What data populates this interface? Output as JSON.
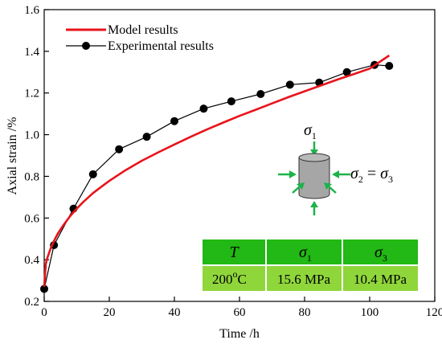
{
  "chart_data": {
    "type": "line",
    "xlabel": "Time /h",
    "ylabel": "Axial strain /%",
    "xlim": [
      0,
      120
    ],
    "ylim": [
      0.2,
      1.6
    ],
    "xticks": [
      "0",
      "20",
      "40",
      "60",
      "80",
      "100",
      "120"
    ],
    "yticks": [
      "0.2",
      "0.4",
      "0.6",
      "0.8",
      "1.0",
      "1.2",
      "1.4",
      "1.6"
    ],
    "legend_position": "top-left",
    "grid": false,
    "series": [
      {
        "name": "Model results",
        "style": "line",
        "color": "#e8141b",
        "x": [
          0,
          0.5,
          1,
          2,
          3,
          4,
          5,
          6,
          8,
          10,
          12,
          15,
          18,
          20,
          25,
          30,
          35,
          40,
          45,
          50,
          55,
          60,
          65,
          70,
          75,
          80,
          85,
          90,
          95,
          100,
          106
        ],
        "y": [
          0.27,
          0.38,
          0.41,
          0.455,
          0.49,
          0.52,
          0.545,
          0.568,
          0.61,
          0.645,
          0.677,
          0.72,
          0.755,
          0.778,
          0.83,
          0.875,
          0.915,
          0.953,
          0.99,
          1.025,
          1.058,
          1.09,
          1.12,
          1.15,
          1.18,
          1.208,
          1.236,
          1.264,
          1.29,
          1.317,
          1.38
        ]
      },
      {
        "name": "Experimental results",
        "style": "line-markers",
        "color": "#000000",
        "x": [
          0,
          3,
          9,
          15,
          23,
          31.5,
          40,
          49,
          57.5,
          66.5,
          75.5,
          84.5,
          93,
          101.5,
          106
        ],
        "y": [
          0.26,
          0.47,
          0.645,
          0.81,
          0.93,
          0.99,
          1.065,
          1.125,
          1.16,
          1.195,
          1.24,
          1.25,
          1.3,
          1.335,
          1.33
        ]
      }
    ]
  },
  "legend": {
    "model": "Model results",
    "experimental": "Experimental results"
  },
  "schematic": {
    "sigma": "σ",
    "top_sub": "1",
    "side_sub_left": "2",
    "equals": " = ",
    "side_sub_right": "3",
    "body_color": "#a6a6a6",
    "arrow_color": "#1db34a"
  },
  "conditions_table": {
    "header_color": "#22b815",
    "row_color": "#8fd63b",
    "headers": [
      {
        "symbol": "T",
        "sub": ""
      },
      {
        "symbol": "σ",
        "sub": "1"
      },
      {
        "symbol": "σ",
        "sub": "3"
      }
    ],
    "values": [
      {
        "main": "200",
        "sup": "o",
        "unit": "C"
      },
      {
        "main": "15.6 MPa",
        "sup": "",
        "unit": ""
      },
      {
        "main": "10.4 MPa",
        "sup": "",
        "unit": ""
      }
    ]
  }
}
